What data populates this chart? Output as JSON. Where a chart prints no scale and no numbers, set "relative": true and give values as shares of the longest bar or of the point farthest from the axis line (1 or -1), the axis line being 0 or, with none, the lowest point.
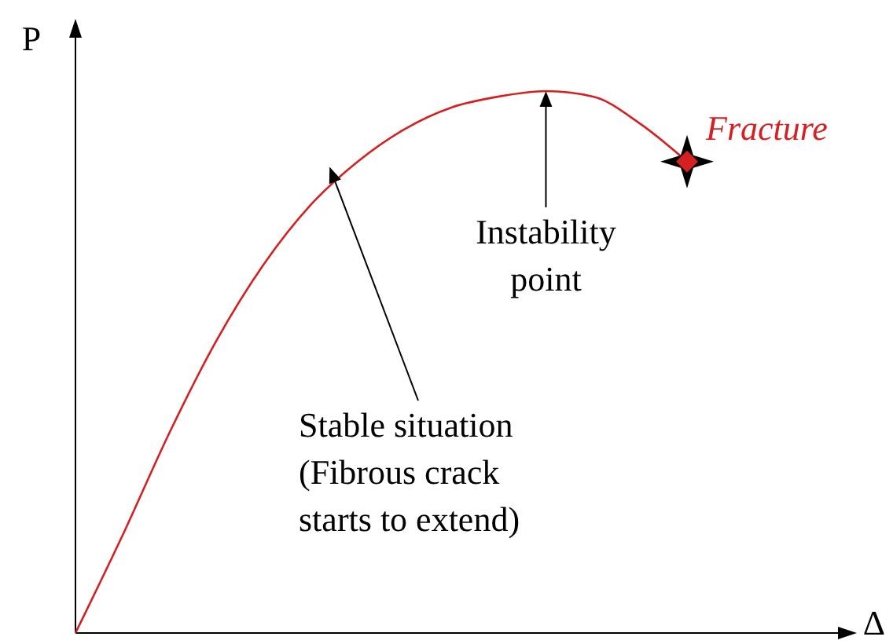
{
  "chart_data": {
    "type": "line",
    "relative": true,
    "xlabel": "Δ",
    "ylabel": "P",
    "categories": [
      null,
      null,
      null,
      null,
      null,
      null,
      null,
      null,
      null,
      null,
      null,
      null,
      null,
      null
    ],
    "series": [
      {
        "color": "#d42020",
        "values": [
          0,
          0.18,
          0.37,
          0.54,
          0.68,
          0.79,
          0.87,
          0.93,
          0.97,
          0.99,
          1,
          0.99,
          0.94,
          0.87
        ]
      }
    ],
    "marker": "none",
    "line_style": "solid",
    "annotations": [
      "Fracture",
      "Instability\npoint",
      "Stable situation\n(Fibrous crack\nstarts to extend)"
    ]
  }
}
